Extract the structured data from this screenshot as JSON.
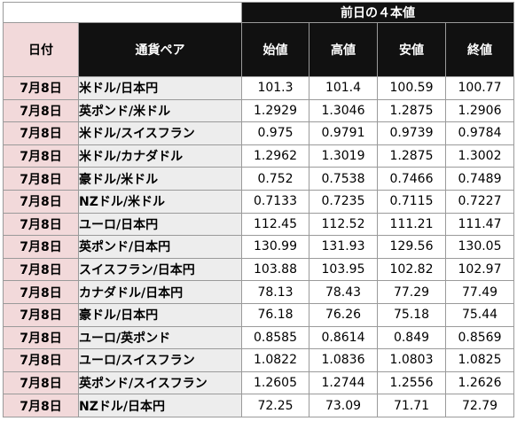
{
  "table": {
    "group_header": "前日の４本値",
    "headers": {
      "date": "日付",
      "pair": "通貨ペア",
      "open": "始値",
      "high": "高値",
      "low": "安値",
      "close": "終値"
    },
    "rows": [
      {
        "date": "7月8日",
        "pair": "米ドル/日本円",
        "open": "101.3",
        "high": "101.4",
        "low": "100.59",
        "close": "100.77"
      },
      {
        "date": "7月8日",
        "pair": "英ポンド/米ドル",
        "open": "1.2929",
        "high": "1.3046",
        "low": "1.2875",
        "close": "1.2906"
      },
      {
        "date": "7月8日",
        "pair": "米ドル/スイスフラン",
        "open": "0.975",
        "high": "0.9791",
        "low": "0.9739",
        "close": "0.9784"
      },
      {
        "date": "7月8日",
        "pair": "米ドル/カナダドル",
        "open": "1.2962",
        "high": "1.3019",
        "low": "1.2875",
        "close": "1.3002"
      },
      {
        "date": "7月8日",
        "pair": "豪ドル/米ドル",
        "open": "0.752",
        "high": "0.7538",
        "low": "0.7466",
        "close": "0.7489"
      },
      {
        "date": "7月8日",
        "pair": "NZドル/米ドル",
        "open": "0.7133",
        "high": "0.7235",
        "low": "0.7115",
        "close": "0.7227"
      },
      {
        "date": "7月8日",
        "pair": "ユーロ/日本円",
        "open": "112.45",
        "high": "112.52",
        "low": "111.21",
        "close": "111.47"
      },
      {
        "date": "7月8日",
        "pair": "英ポンド/日本円",
        "open": "130.99",
        "high": "131.93",
        "low": "129.56",
        "close": "130.05"
      },
      {
        "date": "7月8日",
        "pair": "スイスフラン/日本円",
        "open": "103.88",
        "high": "103.95",
        "low": "102.82",
        "close": "102.97"
      },
      {
        "date": "7月8日",
        "pair": "カナダドル/日本円",
        "open": "78.13",
        "high": "78.43",
        "low": "77.29",
        "close": "77.49"
      },
      {
        "date": "7月8日",
        "pair": "豪ドル/日本円",
        "open": "76.18",
        "high": "76.26",
        "low": "75.18",
        "close": "75.44"
      },
      {
        "date": "7月8日",
        "pair": "ユーロ/英ポンド",
        "open": "0.8585",
        "high": "0.8614",
        "low": "0.849",
        "close": "0.8569"
      },
      {
        "date": "7月8日",
        "pair": "ユーロ/スイスフラン",
        "open": "1.0822",
        "high": "1.0836",
        "low": "1.0803",
        "close": "1.0825"
      },
      {
        "date": "7月8日",
        "pair": "英ポンド/スイスフラン",
        "open": "1.2605",
        "high": "1.2744",
        "low": "1.2556",
        "close": "1.2626"
      },
      {
        "date": "7月8日",
        "pair": "NZドル/日本円",
        "open": "72.25",
        "high": "73.09",
        "low": "71.71",
        "close": "72.79"
      }
    ]
  },
  "colors": {
    "header_dark": "#111111",
    "date_column_pink": "#f2d9da",
    "pair_column_gray": "#ededed",
    "grid_line": "#9a9a9a"
  }
}
